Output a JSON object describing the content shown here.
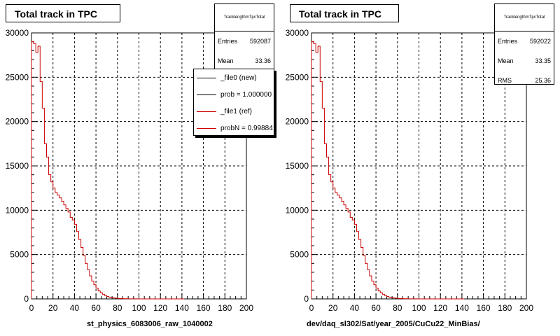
{
  "colors": {
    "new": "#000000",
    "ref": "#cc0000"
  },
  "chart_data": [
    {
      "type": "line",
      "title": "Total track in TPC",
      "xlabel": "st_physics_6083006_raw_1040002",
      "ylabel": "",
      "xlim": [
        0,
        200
      ],
      "ylim": [
        0,
        30000
      ],
      "xticks": [
        0,
        20,
        40,
        60,
        80,
        100,
        120,
        140,
        160,
        180,
        200
      ],
      "yticks": [
        0,
        5000,
        10000,
        15000,
        20000,
        25000,
        30000
      ],
      "grid": true,
      "stats": {
        "name": "TracklengthInTpcTotal",
        "entries_label": "Entries",
        "entries": "592087",
        "mean_label": "Mean",
        "mean": "33.36"
      },
      "legend": {
        "placement": "top-right",
        "entries": [
          {
            "label": "_file0 (new)",
            "color": "#000000"
          },
          {
            "label": "prob = 1.000000",
            "color": "#000000"
          },
          {
            "label": "_file1 (ref)",
            "color": "#cc0000"
          },
          {
            "label": "probN = 0.99884",
            "color": "#cc0000"
          }
        ]
      },
      "series": [
        {
          "bin_width": 2,
          "x": [
            0,
            2,
            4,
            6,
            8,
            10,
            12,
            14,
            16,
            18,
            20,
            22,
            24,
            26,
            28,
            30,
            32,
            34,
            36,
            38,
            40,
            42,
            44,
            46,
            48,
            50,
            52,
            54,
            56,
            58,
            60,
            62,
            64,
            66,
            68,
            70,
            72,
            74,
            76,
            78,
            80,
            82,
            84,
            86,
            88,
            90,
            92,
            94,
            96,
            98,
            100,
            102,
            104,
            106,
            108,
            110,
            112,
            114,
            116,
            118,
            120,
            122,
            124,
            126,
            128,
            130,
            132,
            134,
            136,
            138,
            140
          ],
          "values": [
            29000,
            28800,
            27800,
            28500,
            24500,
            21500,
            17500,
            16000,
            14000,
            13200,
            12500,
            12000,
            11700,
            11400,
            11000,
            10600,
            10200,
            9800,
            9200,
            8900,
            8400,
            7600,
            6700,
            5800,
            4900,
            4000,
            3300,
            2600,
            2000,
            1600,
            1200,
            900,
            700,
            520,
            380,
            280,
            200,
            150,
            100,
            80,
            50,
            40,
            30,
            20,
            15,
            12,
            10,
            8,
            6,
            4,
            3,
            2,
            2,
            1,
            1,
            1,
            1,
            0,
            0,
            0,
            0,
            0,
            0,
            0,
            0,
            0,
            0,
            0,
            0,
            0,
            0
          ]
        }
      ]
    },
    {
      "type": "line",
      "title": "Total track in TPC",
      "xlabel": "dev/daq_sl302/Sat/year_2005/CuCu22_MinBias/",
      "ylabel": "",
      "xlim": [
        0,
        200
      ],
      "ylim": [
        0,
        30000
      ],
      "xticks": [
        0,
        20,
        40,
        60,
        80,
        100,
        120,
        140,
        160,
        180,
        200
      ],
      "yticks": [
        0,
        5000,
        10000,
        15000,
        20000,
        25000,
        30000
      ],
      "grid": true,
      "stats": {
        "name": "TracklengthInTpcTotal",
        "entries_label": "Entries",
        "entries": "592022",
        "mean_label": "Mean",
        "mean": "33.35",
        "rms_label": "RMS",
        "rms": "25.36"
      },
      "series": [
        {
          "bin_width": 2,
          "x": [
            0,
            2,
            4,
            6,
            8,
            10,
            12,
            14,
            16,
            18,
            20,
            22,
            24,
            26,
            28,
            30,
            32,
            34,
            36,
            38,
            40,
            42,
            44,
            46,
            48,
            50,
            52,
            54,
            56,
            58,
            60,
            62,
            64,
            66,
            68,
            70,
            72,
            74,
            76,
            78,
            80,
            82,
            84,
            86,
            88,
            90,
            92,
            94,
            96,
            98,
            100,
            102,
            104,
            106,
            108,
            110,
            112,
            114,
            116,
            118,
            120,
            122,
            124,
            126,
            128,
            130,
            132,
            134,
            136,
            138,
            140
          ],
          "values": [
            29000,
            28800,
            27800,
            28500,
            24500,
            21500,
            17500,
            16000,
            14000,
            13200,
            12500,
            12000,
            11700,
            11400,
            11000,
            10600,
            10200,
            9800,
            9200,
            8900,
            8400,
            7600,
            6700,
            5800,
            4900,
            4000,
            3300,
            2600,
            2000,
            1600,
            1200,
            900,
            700,
            520,
            380,
            280,
            200,
            150,
            100,
            80,
            50,
            40,
            30,
            20,
            15,
            12,
            10,
            8,
            6,
            4,
            3,
            2,
            2,
            1,
            1,
            1,
            1,
            0,
            0,
            0,
            0,
            0,
            0,
            0,
            0,
            0,
            0,
            0,
            0,
            0,
            0
          ]
        }
      ]
    }
  ]
}
